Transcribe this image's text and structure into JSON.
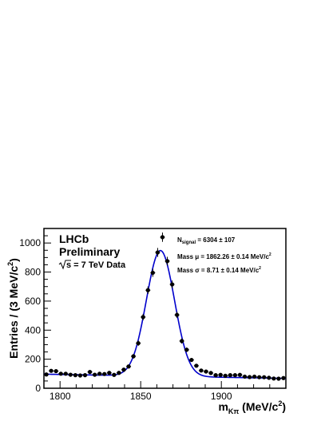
{
  "chart_data": {
    "type": "scatter",
    "xlabel": {
      "main": "m",
      "sub": "Kπ",
      "unit_pre": " (MeV/c",
      "unit_sup": "2",
      "unit_post": ")"
    },
    "ylabel": {
      "pre": "Entries / (3 MeV/c",
      "sup": "2",
      "post": ")"
    },
    "xlim": [
      1790,
      1940
    ],
    "ylim": [
      0,
      1100
    ],
    "xticks": [
      {
        "value": 1800,
        "label": "1800"
      },
      {
        "value": 1850,
        "label": "1850"
      },
      {
        "value": 1900,
        "label": "1900"
      }
    ],
    "yticks": [
      {
        "value": 0,
        "label": "0"
      },
      {
        "value": 200,
        "label": "200"
      },
      {
        "value": 400,
        "label": "400"
      },
      {
        "value": 600,
        "label": "600"
      },
      {
        "value": 800,
        "label": "800"
      },
      {
        "value": 1000,
        "label": "1000"
      }
    ],
    "grid": false,
    "colors": {
      "data": "#000000",
      "fit": "#0000cc"
    },
    "annotations": {
      "experiment": "LHCb",
      "status": "Preliminary",
      "energy_sqrt": "s",
      "energy_rest": " = 7 TeV Data",
      "nsignal": {
        "pre": "N",
        "sub": "signal",
        "post": " = 6304 ± 107"
      },
      "mass_mu": "Mass μ = 1862.26 ± 0.14 MeV/c",
      "mass_sigma": "Mass σ = 8.71 ± 0.14 MeV/c",
      "sup2": "2"
    },
    "series": [
      {
        "kind": "points",
        "x": [
          1791.5,
          1794.5,
          1797.5,
          1800.5,
          1803.5,
          1806.5,
          1809.5,
          1812.5,
          1815.5,
          1818.5,
          1821.5,
          1824.5,
          1827.5,
          1830.5,
          1833.5,
          1836.5,
          1839.5,
          1842.5,
          1845.5,
          1848.5,
          1851.5,
          1854.5,
          1857.5,
          1860.5,
          1863.5,
          1866.5,
          1869.5,
          1872.5,
          1875.5,
          1878.5,
          1881.5,
          1884.5,
          1887.5,
          1890.5,
          1893.5,
          1896.5,
          1899.5,
          1902.5,
          1905.5,
          1908.5,
          1911.5,
          1914.5,
          1917.5,
          1920.5,
          1923.5,
          1926.5,
          1929.5,
          1932.5,
          1935.5,
          1938.5
        ],
        "y": [
          95,
          120,
          118,
          100,
          100,
          93,
          90,
          88,
          90,
          112,
          93,
          100,
          98,
          106,
          92,
          106,
          128,
          150,
          220,
          310,
          490,
          675,
          795,
          935,
          1040,
          875,
          715,
          505,
          325,
          265,
          195,
          155,
          122,
          115,
          105,
          90,
          92,
          86,
          90,
          90,
          92,
          80,
          77,
          80,
          76,
          76,
          72,
          67,
          66,
          70
        ],
        "yerr": [
          10,
          11,
          11,
          10,
          10,
          10,
          10,
          9,
          10,
          11,
          10,
          10,
          10,
          10,
          10,
          10,
          11,
          12,
          15,
          18,
          22,
          26,
          28,
          31,
          32,
          30,
          27,
          22,
          18,
          16,
          14,
          12,
          11,
          11,
          10,
          10,
          10,
          9,
          10,
          10,
          10,
          9,
          9,
          9,
          9,
          9,
          9,
          8,
          8,
          9
        ]
      },
      {
        "kind": "fit",
        "model": "gaussian_plus_linear",
        "mu": 1862.26,
        "sigma": 8.71,
        "amplitude": 865,
        "background_at_1790": 97,
        "background_at_1940": 68
      }
    ]
  }
}
